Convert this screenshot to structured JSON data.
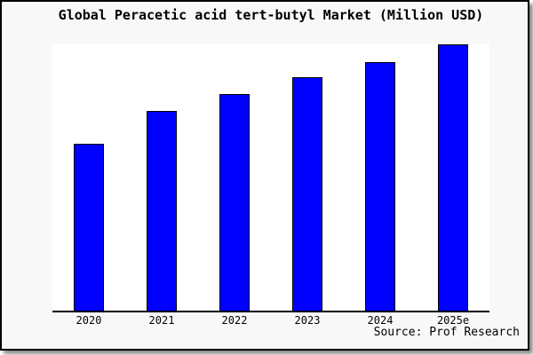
{
  "window": {
    "background": "#ffffff",
    "frame_background": "#f8f8f8",
    "frame_border_color": "#000000",
    "shadow_color": "#888888"
  },
  "chart_data": {
    "type": "bar",
    "title": "Global Peracetic acid tert-butyl Market (Million USD)",
    "categories": [
      "2020",
      "2021",
      "2022",
      "2023",
      "2024",
      "2025e"
    ],
    "values": [
      62.6,
      75.0,
      81.3,
      87.6,
      93.5,
      100.0
    ],
    "values_note": "Relative units estimated from bar pixel heights (2025e bar = 100); chart displays no numeric y-axis ticks or data labels",
    "xlabel": "",
    "ylabel": "",
    "ylim": [
      0,
      100
    ],
    "grid": false,
    "legend": false,
    "bar_color": "#0000ff",
    "bar_border_color": "#000000",
    "axis_color": "#000000",
    "plot_background": "#ffffff",
    "source_label": "Source: Prof Research"
  }
}
